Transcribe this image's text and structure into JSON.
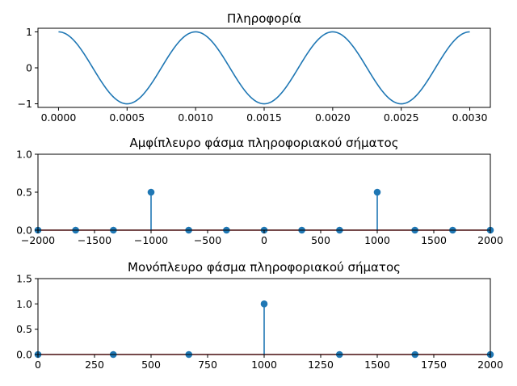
{
  "colors": {
    "series": "#1f77b4",
    "baseline": "#d62728"
  },
  "chart_data": [
    {
      "type": "line",
      "title": "Πληροφορία",
      "xlabel": "",
      "ylabel": "",
      "xlim": [
        -0.00015,
        0.00315
      ],
      "ylim": [
        -1.1,
        1.1
      ],
      "xticks": [
        0.0,
        0.0005,
        0.001,
        0.0015,
        0.002,
        0.0025,
        0.003
      ],
      "xtick_labels": [
        "0.0000",
        "0.0005",
        "0.0010",
        "0.0015",
        "0.0020",
        "0.0025",
        "0.0030"
      ],
      "yticks": [
        1,
        0,
        -1
      ],
      "ytick_labels": [
        "1",
        "0",
        "−1"
      ],
      "function": "cos(2*pi*1000*t)",
      "frequency": 1000,
      "x_range": [
        0,
        0.003
      ],
      "grid": false
    },
    {
      "type": "stem",
      "title": "Αμφίπλευρο φάσμα πληροφοριακού σήματος",
      "xlabel": "",
      "ylabel": "",
      "xlim": [
        -2000,
        2000
      ],
      "ylim": [
        0,
        1.0
      ],
      "xticks": [
        -2000,
        -1500,
        -1000,
        -500,
        0,
        500,
        1000,
        1500,
        2000
      ],
      "xtick_labels": [
        "−2000",
        "−1500",
        "−1000",
        "−500",
        "0",
        "500",
        "1000",
        "1500",
        "2000"
      ],
      "yticks": [
        0.0,
        0.5,
        1.0
      ],
      "ytick_labels": [
        "0.0",
        "0.5",
        "1.0"
      ],
      "x": [
        -2000,
        -1667,
        -1333,
        -1000,
        -667,
        -333,
        0,
        333,
        667,
        1000,
        1333,
        1667,
        2000
      ],
      "values": [
        0,
        0,
        0,
        0.5,
        0,
        0,
        0,
        0,
        0,
        0.5,
        0,
        0,
        0
      ],
      "grid": false
    },
    {
      "type": "stem",
      "title": "Μονόπλευρο φάσμα πληροφοριακού σήματος",
      "xlabel": "",
      "ylabel": "",
      "xlim": [
        0,
        2000
      ],
      "ylim": [
        0,
        1.5
      ],
      "xticks": [
        0,
        250,
        500,
        750,
        1000,
        1250,
        1500,
        1750,
        2000
      ],
      "xtick_labels": [
        "0",
        "250",
        "500",
        "750",
        "1000",
        "1250",
        "1500",
        "1750",
        "2000"
      ],
      "yticks": [
        0.0,
        0.5,
        1.0,
        1.5
      ],
      "ytick_labels": [
        "0.0",
        "0.5",
        "1.0",
        "1.5"
      ],
      "x": [
        0,
        333,
        667,
        1000,
        1333,
        1667,
        2000
      ],
      "values": [
        0,
        0,
        0,
        1.0,
        0,
        0,
        0
      ],
      "grid": false
    }
  ]
}
